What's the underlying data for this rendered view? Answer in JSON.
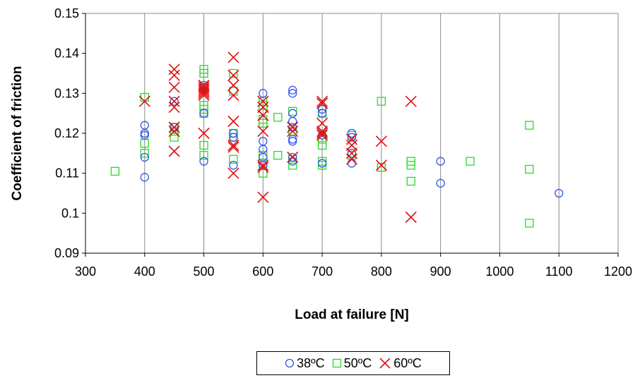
{
  "chart_data": {
    "type": "scatter",
    "xlabel": "Load at failure [N]",
    "ylabel": "Coefficient of friction",
    "xlim": [
      300,
      1200
    ],
    "ylim": [
      0.09,
      0.15
    ],
    "xticks": [
      "300",
      "400",
      "500",
      "600",
      "700",
      "800",
      "900",
      "1000",
      "1100",
      "1200"
    ],
    "yticks": [
      "0.09",
      "0.1",
      "0.11",
      "0.12",
      "0.13",
      "0.14",
      "0.15"
    ],
    "grid": "vertical",
    "legend_position": "bottom",
    "series": [
      {
        "name": "38ºC",
        "marker": "circle",
        "color": "#3355ee",
        "points": [
          [
            400,
            0.109
          ],
          [
            400,
            0.114
          ],
          [
            400,
            0.1195
          ],
          [
            400,
            0.12
          ],
          [
            400,
            0.122
          ],
          [
            450,
            0.128
          ],
          [
            450,
            0.1215
          ],
          [
            500,
            0.113
          ],
          [
            500,
            0.125
          ],
          [
            500,
            0.1315
          ],
          [
            500,
            0.132
          ],
          [
            550,
            0.112
          ],
          [
            550,
            0.119
          ],
          [
            550,
            0.12
          ],
          [
            600,
            0.112
          ],
          [
            600,
            0.114
          ],
          [
            600,
            0.116
          ],
          [
            600,
            0.118
          ],
          [
            600,
            0.13
          ],
          [
            650,
            0.113
          ],
          [
            650,
            0.114
          ],
          [
            650,
            0.118
          ],
          [
            650,
            0.1185
          ],
          [
            650,
            0.1215
          ],
          [
            650,
            0.123
          ],
          [
            650,
            0.125
          ],
          [
            650,
            0.13
          ],
          [
            650,
            0.1308
          ],
          [
            700,
            0.1125
          ],
          [
            700,
            0.1195
          ],
          [
            700,
            0.125
          ],
          [
            700,
            0.126
          ],
          [
            750,
            0.1125
          ],
          [
            750,
            0.115
          ],
          [
            750,
            0.119
          ],
          [
            750,
            0.12
          ],
          [
            900,
            0.1075
          ],
          [
            900,
            0.113
          ],
          [
            1100,
            0.105
          ]
        ]
      },
      {
        "name": "50ºC",
        "marker": "square",
        "color": "#22dd22",
        "points": [
          [
            350,
            0.1105
          ],
          [
            400,
            0.115
          ],
          [
            400,
            0.1175
          ],
          [
            400,
            0.129
          ],
          [
            450,
            0.119
          ],
          [
            450,
            0.1205
          ],
          [
            450,
            0.1215
          ],
          [
            500,
            0.1145
          ],
          [
            500,
            0.117
          ],
          [
            500,
            0.125
          ],
          [
            500,
            0.126
          ],
          [
            500,
            0.127
          ],
          [
            500,
            0.135
          ],
          [
            500,
            0.136
          ],
          [
            550,
            0.1135
          ],
          [
            550,
            0.119
          ],
          [
            550,
            0.12
          ],
          [
            550,
            0.1305
          ],
          [
            550,
            0.135
          ],
          [
            600,
            0.11
          ],
          [
            600,
            0.1125
          ],
          [
            600,
            0.1145
          ],
          [
            600,
            0.1225
          ],
          [
            600,
            0.1235
          ],
          [
            600,
            0.127
          ],
          [
            600,
            0.128
          ],
          [
            625,
            0.1145
          ],
          [
            625,
            0.124
          ],
          [
            650,
            0.112
          ],
          [
            650,
            0.1135
          ],
          [
            650,
            0.1205
          ],
          [
            650,
            0.1255
          ],
          [
            700,
            0.112
          ],
          [
            700,
            0.113
          ],
          [
            700,
            0.117
          ],
          [
            700,
            0.1185
          ],
          [
            700,
            0.125
          ],
          [
            750,
            0.1145
          ],
          [
            750,
            0.1195
          ],
          [
            800,
            0.1115
          ],
          [
            800,
            0.1115
          ],
          [
            800,
            0.128
          ],
          [
            850,
            0.108
          ],
          [
            850,
            0.112
          ],
          [
            850,
            0.113
          ],
          [
            950,
            0.113
          ],
          [
            1050,
            0.0975
          ],
          [
            1050,
            0.111
          ],
          [
            1050,
            0.122
          ]
        ]
      },
      {
        "name": "60ºC",
        "marker": "x",
        "color": "#dd1111",
        "points": [
          [
            400,
            0.128
          ],
          [
            450,
            0.1155
          ],
          [
            450,
            0.1205
          ],
          [
            450,
            0.1215
          ],
          [
            450,
            0.1265
          ],
          [
            450,
            0.128
          ],
          [
            450,
            0.1315
          ],
          [
            450,
            0.1345
          ],
          [
            450,
            0.136
          ],
          [
            500,
            0.12
          ],
          [
            500,
            0.1295
          ],
          [
            500,
            0.13
          ],
          [
            500,
            0.1305
          ],
          [
            500,
            0.131
          ],
          [
            500,
            0.1315
          ],
          [
            500,
            0.132
          ],
          [
            550,
            0.11
          ],
          [
            550,
            0.1165
          ],
          [
            550,
            0.117
          ],
          [
            550,
            0.123
          ],
          [
            550,
            0.1295
          ],
          [
            550,
            0.132
          ],
          [
            550,
            0.1345
          ],
          [
            550,
            0.139
          ],
          [
            600,
            0.104
          ],
          [
            600,
            0.1115
          ],
          [
            600,
            0.112
          ],
          [
            600,
            0.1205
          ],
          [
            600,
            0.1245
          ],
          [
            600,
            0.1265
          ],
          [
            600,
            0.128
          ],
          [
            650,
            0.114
          ],
          [
            650,
            0.1205
          ],
          [
            650,
            0.1215
          ],
          [
            700,
            0.1195
          ],
          [
            700,
            0.12
          ],
          [
            700,
            0.1205
          ],
          [
            700,
            0.1225
          ],
          [
            700,
            0.1275
          ],
          [
            700,
            0.128
          ],
          [
            750,
            0.1135
          ],
          [
            750,
            0.115
          ],
          [
            750,
            0.117
          ],
          [
            750,
            0.1185
          ],
          [
            800,
            0.112
          ],
          [
            800,
            0.118
          ],
          [
            850,
            0.099
          ],
          [
            850,
            0.128
          ]
        ]
      }
    ]
  }
}
